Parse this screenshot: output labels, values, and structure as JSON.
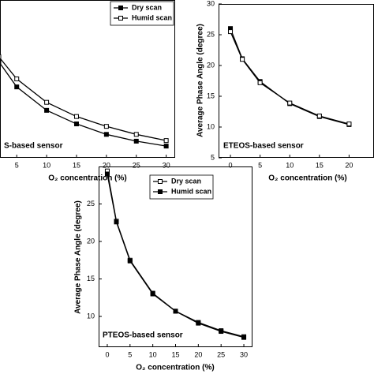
{
  "chart_data": [
    {
      "type": "line",
      "annotation": "S-based sensor",
      "x_label": "O₂ concentration (%)",
      "x": [
        2,
        5,
        10,
        15,
        20,
        25,
        30
      ],
      "series": [
        {
          "name": "Dry scan",
          "color": "#000000",
          "marker": "filled",
          "values": [
            20.6,
            16.5,
            12.7,
            10.5,
            8.8,
            7.7,
            6.9
          ]
        },
        {
          "name": "Humid scan",
          "color": "#000000",
          "marker": "open",
          "values": [
            21.4,
            17.8,
            14.0,
            11.7,
            10.1,
            8.8,
            7.8
          ]
        }
      ],
      "xlim": [
        2.2,
        31.5
      ],
      "xticks": [
        5,
        10,
        15,
        20,
        25,
        30
      ],
      "ylim": [
        5,
        30.6
      ]
    },
    {
      "type": "line",
      "annotation": "ETEOS-based sensor",
      "x_label": "O₂ concentration (%)",
      "y_label": "Average Phase Angle (degree)",
      "x": [
        0,
        2,
        5,
        10,
        15,
        20
      ],
      "series": [
        {
          "color": "#000000",
          "marker": "filled",
          "values": [
            26.0,
            21.1,
            17.4,
            13.8,
            11.7,
            10.4
          ]
        },
        {
          "color": "#000000",
          "marker": "open",
          "values": [
            25.5,
            21.0,
            17.2,
            13.9,
            11.8,
            10.5
          ]
        }
      ],
      "xlim": [
        -2,
        24.2
      ],
      "xticks": [
        0,
        5,
        10,
        15,
        20
      ],
      "ylim": [
        5,
        30
      ],
      "yticks": [
        5,
        10,
        15,
        20,
        25,
        30
      ]
    },
    {
      "type": "line",
      "annotation": "PTEOS-based sensor",
      "x_label": "O₂ concentration (%)",
      "y_label": "Average Phase Angle (degree)",
      "x": [
        0,
        2,
        5,
        10,
        15,
        20,
        25,
        30
      ],
      "series": [
        {
          "name": "Dry scan",
          "color": "#000000",
          "marker": "open",
          "values": [
            29.4,
            22.7,
            17.5,
            13.1,
            10.7,
            9.2,
            8.1,
            7.3
          ]
        },
        {
          "name": "Humid scan",
          "color": "#000000",
          "marker": "filled",
          "values": [
            29.0,
            22.6,
            17.4,
            13.0,
            10.7,
            9.1,
            8.0,
            7.2
          ]
        }
      ],
      "xlim": [
        -1.9,
        31.9
      ],
      "xticks": [
        0,
        5,
        10,
        15,
        20,
        25,
        30
      ],
      "ylim": [
        5.9,
        30
      ],
      "yticks": [
        10,
        15,
        20,
        25
      ]
    }
  ]
}
